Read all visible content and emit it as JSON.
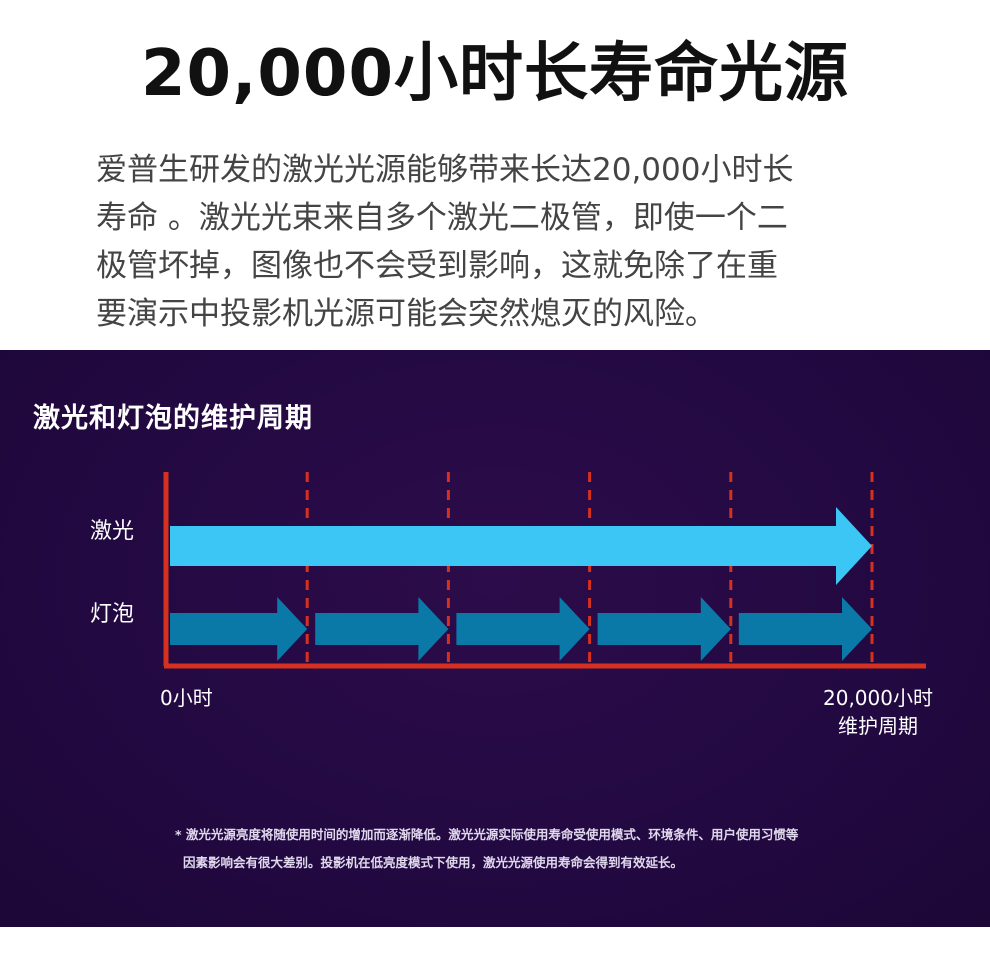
{
  "header": {
    "headline": "20,000小时长寿命光源",
    "intro_lines": [
      "爱普生研发的激光光源能够带来长达20,000小时长",
      "寿命 。激光光束来自多个激光二极管，即使一个二",
      "极管坏掉，图像也不会受到影响，这就免除了在重",
      "要演示中投影机光源可能会突然熄灭的风险。"
    ]
  },
  "diagram": {
    "title": "激光和灯泡的维护周期",
    "rows": [
      {
        "label": "激光",
        "color": "#3cc6f6",
        "segments": 1
      },
      {
        "label": "灯泡",
        "color": "#0b79a8",
        "segments": 5
      }
    ],
    "axis_start_label": "0小时",
    "axis_end_label_line1": "20,000小时",
    "axis_end_label_line2": "维护周期",
    "axis_color": "#d6301f",
    "divider_count": 5
  },
  "footnote": {
    "line1": "* 激光光源亮度将随使用时间的增加而逐渐降低。激光光源实际使用寿命受使用模式、环境条件、用户使用习惯等",
    "line2": "因素影响会有很大差别。投影机在低亮度模式下使用，激光光源使用寿命会得到有效延长。"
  }
}
